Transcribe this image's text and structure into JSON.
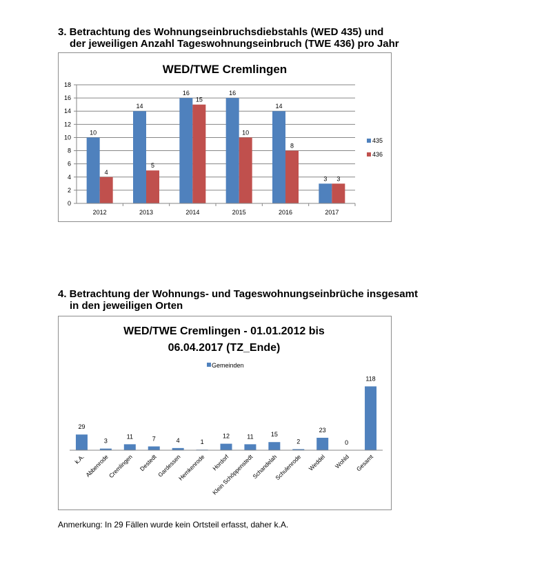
{
  "section3": {
    "heading_line1": "3. Betrachtung des Wohnungseinbruchsdiebstahls (WED 435) und",
    "heading_line2": "der jeweiligen Anzahl Tageswohnungseinbruch (TWE 436) pro Jahr"
  },
  "section4": {
    "heading_line1": "4. Betrachtung der Wohnungs- und Tageswohnungseinbrüche insgesamt",
    "heading_line2": "in den jeweiligen Orten"
  },
  "note": "Anmerkung: In 29 Fällen wurde kein Ortsteil erfasst, daher k.A.",
  "colors": {
    "s435": "#4f81bd",
    "s436": "#c0504d",
    "grid": "#868686",
    "axis": "#868686"
  },
  "chart_data": [
    {
      "type": "bar",
      "title": "WED/TWE Cremlingen",
      "categories": [
        "2012",
        "2013",
        "2014",
        "2015",
        "2016",
        "2017"
      ],
      "series": [
        {
          "name": "435",
          "values": [
            10,
            14,
            16,
            16,
            14,
            3
          ]
        },
        {
          "name": "436",
          "values": [
            4,
            5,
            15,
            10,
            8,
            3
          ]
        }
      ],
      "ylim": [
        0,
        18
      ],
      "yticks": [
        0,
        2,
        4,
        6,
        8,
        10,
        12,
        14,
        16,
        18
      ],
      "grid": true,
      "legend": "right"
    },
    {
      "type": "bar",
      "title_line1": "WED/TWE Cremlingen - 01.01.2012 bis",
      "title_line2": "06.04.2017 (TZ_Ende)",
      "categories": [
        "k.A.",
        "Abbenrode",
        "Cremlingen",
        "Destedt",
        "Gardessen",
        "Hemkenrode",
        "Hordorf",
        "Klein Schöppenstedt",
        "Schandelah",
        "Schulenrode",
        "Weddel",
        "Wohld",
        "Gesamt"
      ],
      "series": [
        {
          "name": "Gemeinden",
          "values": [
            29,
            3,
            11,
            7,
            4,
            1,
            12,
            11,
            15,
            2,
            23,
            0,
            118
          ]
        }
      ],
      "ylim": [
        0,
        130
      ],
      "grid": false,
      "legend": "top"
    }
  ]
}
